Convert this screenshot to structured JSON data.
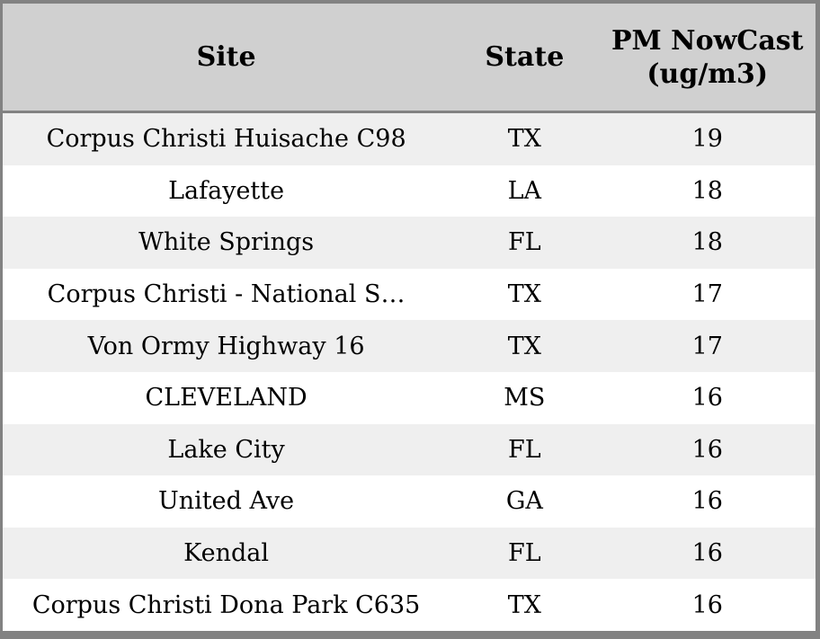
{
  "table": {
    "columns": [
      {
        "key": "site",
        "label": "Site"
      },
      {
        "key": "state",
        "label": "State"
      },
      {
        "key": "value",
        "label": "PM NowCast (ug/m3)"
      }
    ],
    "rows": [
      {
        "site": "Corpus Christi Huisache C98",
        "state": "TX",
        "value": "19"
      },
      {
        "site": "Lafayette",
        "state": "LA",
        "value": "18"
      },
      {
        "site": "White Springs",
        "state": "FL",
        "value": "18"
      },
      {
        "site": "Corpus Christi - National S…",
        "state": "TX",
        "value": "17"
      },
      {
        "site": "Von Ormy Highway 16",
        "state": "TX",
        "value": "17"
      },
      {
        "site": "CLEVELAND",
        "state": "MS",
        "value": "16"
      },
      {
        "site": "Lake City",
        "state": "FL",
        "value": "16"
      },
      {
        "site": "United Ave",
        "state": "GA",
        "value": "16"
      },
      {
        "site": "Kendal",
        "state": "FL",
        "value": "16"
      },
      {
        "site": "Corpus Christi Dona Park C635",
        "state": "TX",
        "value": "16"
      }
    ],
    "colors": {
      "header_bg": "#d0d0d0",
      "border": "#828282",
      "row_stripe_bg": "#efefef",
      "row_bg": "#ffffff",
      "text": "#000000"
    }
  }
}
